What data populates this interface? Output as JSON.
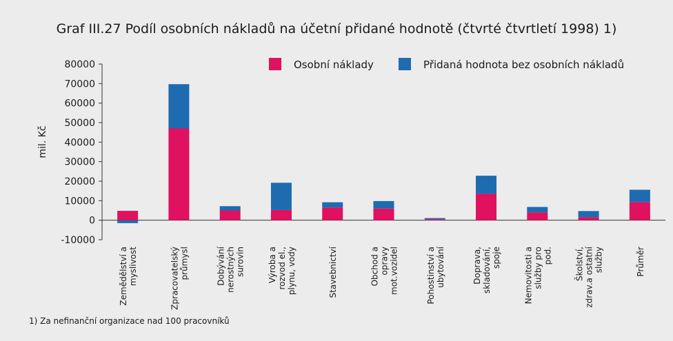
{
  "chart_data": {
    "type": "bar",
    "stacked": true,
    "title": "Graf III.27  Podíl osobních nákladů na účetní přidané hodnotě (čtvrté čtvrtletí 1998) 1)",
    "ylabel": "mil. Kč",
    "footnote": "1) Za nefinanční organizace nad 100 pracovníků",
    "categories": [
      [
        "Zemědělství a",
        "myslivost"
      ],
      [
        "Zpracovatelský",
        "průmysl"
      ],
      [
        "Dobývání",
        "nerostných",
        "surovin"
      ],
      [
        "Výroba a",
        "rozvod el.,",
        "plynu, vody"
      ],
      [
        "Stavebnictví"
      ],
      [
        "Obchod a",
        "opravy",
        "mot.vozidel"
      ],
      [
        "Pohostinství a",
        "ubytování"
      ],
      [
        "Doprava,",
        "skladování,",
        "spoje"
      ],
      [
        "Nemovitosti a",
        "služby pro",
        "pod."
      ],
      [
        "Školství,",
        "zdrav.a ostatní",
        "služby"
      ],
      [
        "Průměr"
      ]
    ],
    "series": [
      {
        "name": "Osobní náklady",
        "color": "#e0115f",
        "values": [
          4800,
          47000,
          5000,
          5200,
          6500,
          6000,
          500,
          13500,
          4000,
          1500,
          9300
        ]
      },
      {
        "name": "Přidaná hodnota bez osobních nákladů",
        "color": "#1f6bb0",
        "values": [
          -1500,
          22700,
          2200,
          14000,
          2700,
          3800,
          600,
          9300,
          2800,
          3200,
          6300
        ]
      }
    ],
    "ylim": [
      -10000,
      80000
    ],
    "yticks": [
      -10000,
      0,
      10000,
      20000,
      30000,
      40000,
      50000,
      60000,
      70000,
      80000
    ],
    "legend": "top-right"
  }
}
